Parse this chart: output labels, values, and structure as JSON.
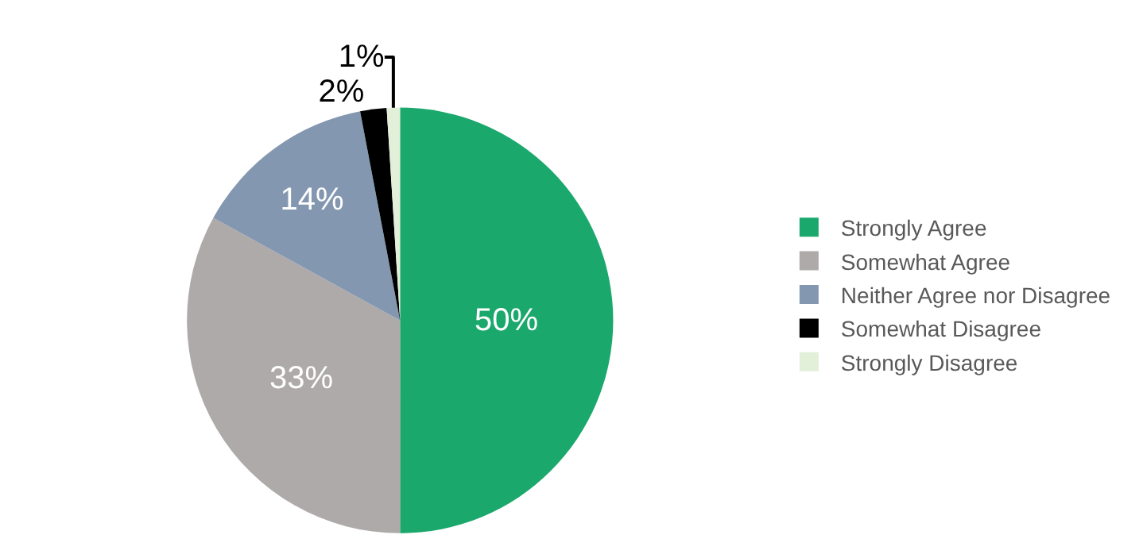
{
  "chart_data": {
    "type": "pie",
    "categories": [
      "Strongly Agree",
      "Somewhat Agree",
      "Neither Agree nor Disagree",
      "Somewhat Disagree",
      "Strongly Disagree"
    ],
    "values": [
      50,
      33,
      14,
      2,
      1
    ],
    "value_labels": [
      "50%",
      "33%",
      "14%",
      "2%",
      "1%"
    ],
    "colors": [
      "#1aa86c",
      "#aeaaaa",
      "#8497b0",
      "#000000",
      "#e2efd9"
    ],
    "legend": "right"
  }
}
